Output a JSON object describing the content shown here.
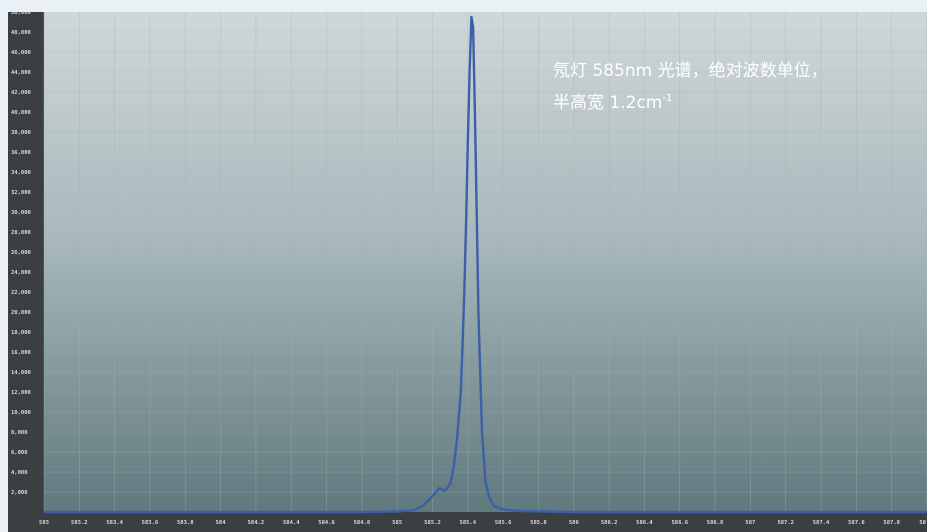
{
  "chart_data": {
    "type": "line",
    "title": "",
    "xlabel": "",
    "ylabel": "",
    "annotation": {
      "line1": "氖灯 585nm 光谱，绝对波数单位，",
      "line2_prefix": "半高宽 1.2cm",
      "line2_sup": "-1"
    },
    "xlim": [
      583.0,
      588.0
    ],
    "ylim": [
      0,
      50000
    ],
    "x_ticks": [
      "583",
      "583.2",
      "583.4",
      "583.6",
      "583.8",
      "584",
      "584.2",
      "584.4",
      "584.6",
      "584.8",
      "585",
      "585.2",
      "585.4",
      "585.6",
      "585.8",
      "586",
      "586.2",
      "586.4",
      "586.6",
      "586.8",
      "587",
      "587.2",
      "587.4",
      "587.6",
      "587.8",
      "58"
    ],
    "y_ticks": [
      "2,000",
      "4,000",
      "6,000",
      "8,000",
      "10,000",
      "12,000",
      "14,000",
      "16,000",
      "18,000",
      "20,000",
      "22,000",
      "24,000",
      "26,000",
      "28,000",
      "30,000",
      "32,000",
      "34,000",
      "36,000",
      "38,000",
      "40,000",
      "42,000",
      "44,000",
      "46,000",
      "48,000",
      "50,000"
    ],
    "grid": true,
    "line_color": "#3d5fa8",
    "series": [
      {
        "name": "",
        "x": [
          583.0,
          584.0,
          584.8,
          585.0,
          585.1,
          585.15,
          585.2,
          585.24,
          585.27,
          585.3,
          585.32,
          585.34,
          585.36,
          585.37,
          585.38,
          585.39,
          585.4,
          585.41,
          585.42,
          585.43,
          585.44,
          585.45,
          585.46,
          585.48,
          585.5,
          585.52,
          585.55,
          585.6,
          585.7,
          586.0,
          587.0,
          588.0
        ],
        "y": [
          0,
          0,
          0,
          50,
          200,
          700,
          1600,
          2400,
          2100,
          2800,
          4500,
          7500,
          12000,
          16500,
          22000,
          29000,
          37000,
          44000,
          49500,
          48500,
          40000,
          30000,
          20000,
          8000,
          3000,
          1500,
          600,
          250,
          100,
          0,
          0,
          0
        ]
      }
    ]
  }
}
